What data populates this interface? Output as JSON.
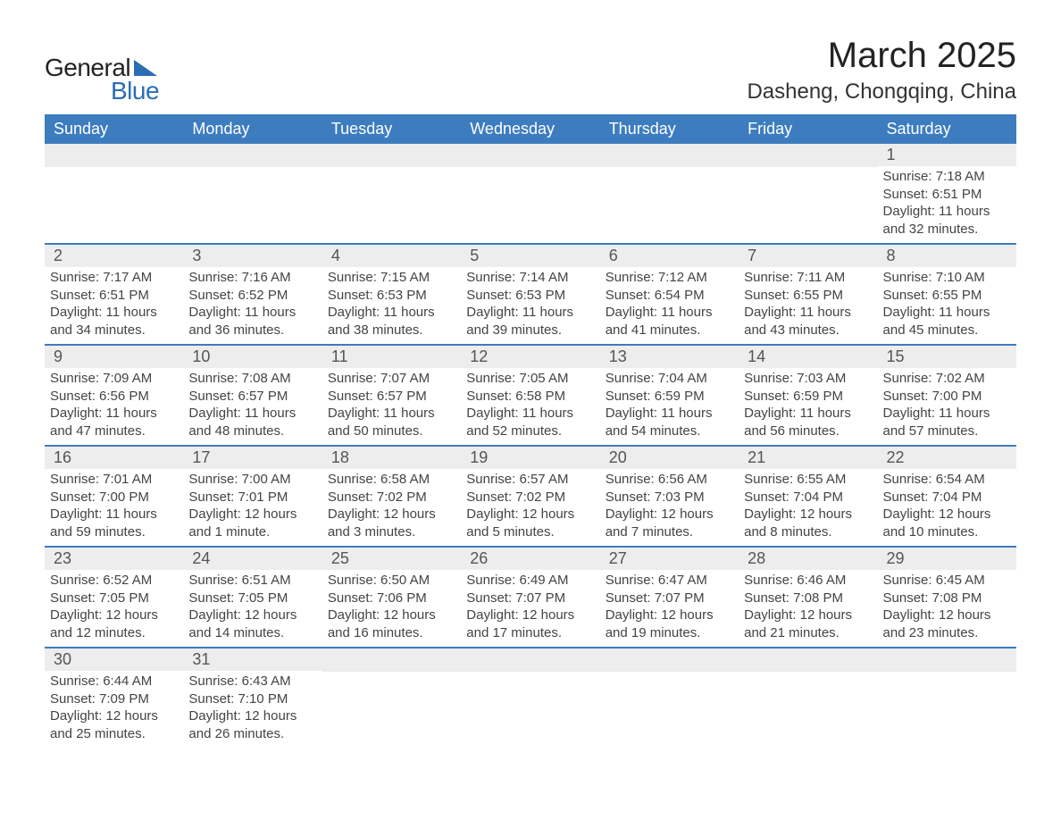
{
  "logo": {
    "text1": "General",
    "text2": "Blue"
  },
  "title": "March 2025",
  "location": "Dasheng, Chongqing, China",
  "weekdays": [
    "Sunday",
    "Monday",
    "Tuesday",
    "Wednesday",
    "Thursday",
    "Friday",
    "Saturday"
  ],
  "colors": {
    "header_bg": "#3d7cbf",
    "header_text": "#ffffff",
    "daynum_bg": "#ededed",
    "daynum_text": "#555555",
    "detail_text": "#444444",
    "row_border": "#3d7cbf",
    "logo_blue": "#2a6db5",
    "logo_text": "#222222",
    "background": "#ffffff"
  },
  "typography": {
    "title_fontsize": 40,
    "location_fontsize": 24,
    "weekday_fontsize": 18,
    "daynum_fontsize": 18,
    "detail_fontsize": 15,
    "logo_fontsize": 28
  },
  "labels": {
    "sunrise_prefix": "Sunrise: ",
    "sunset_prefix": "Sunset: ",
    "daylight_prefix": "Daylight: "
  },
  "weeks": [
    [
      {
        "day": "",
        "sunrise": "",
        "sunset": "",
        "daylight": ""
      },
      {
        "day": "",
        "sunrise": "",
        "sunset": "",
        "daylight": ""
      },
      {
        "day": "",
        "sunrise": "",
        "sunset": "",
        "daylight": ""
      },
      {
        "day": "",
        "sunrise": "",
        "sunset": "",
        "daylight": ""
      },
      {
        "day": "",
        "sunrise": "",
        "sunset": "",
        "daylight": ""
      },
      {
        "day": "",
        "sunrise": "",
        "sunset": "",
        "daylight": ""
      },
      {
        "day": "1",
        "sunrise": "7:18 AM",
        "sunset": "6:51 PM",
        "daylight": "11 hours and 32 minutes."
      }
    ],
    [
      {
        "day": "2",
        "sunrise": "7:17 AM",
        "sunset": "6:51 PM",
        "daylight": "11 hours and 34 minutes."
      },
      {
        "day": "3",
        "sunrise": "7:16 AM",
        "sunset": "6:52 PM",
        "daylight": "11 hours and 36 minutes."
      },
      {
        "day": "4",
        "sunrise": "7:15 AM",
        "sunset": "6:53 PM",
        "daylight": "11 hours and 38 minutes."
      },
      {
        "day": "5",
        "sunrise": "7:14 AM",
        "sunset": "6:53 PM",
        "daylight": "11 hours and 39 minutes."
      },
      {
        "day": "6",
        "sunrise": "7:12 AM",
        "sunset": "6:54 PM",
        "daylight": "11 hours and 41 minutes."
      },
      {
        "day": "7",
        "sunrise": "7:11 AM",
        "sunset": "6:55 PM",
        "daylight": "11 hours and 43 minutes."
      },
      {
        "day": "8",
        "sunrise": "7:10 AM",
        "sunset": "6:55 PM",
        "daylight": "11 hours and 45 minutes."
      }
    ],
    [
      {
        "day": "9",
        "sunrise": "7:09 AM",
        "sunset": "6:56 PM",
        "daylight": "11 hours and 47 minutes."
      },
      {
        "day": "10",
        "sunrise": "7:08 AM",
        "sunset": "6:57 PM",
        "daylight": "11 hours and 48 minutes."
      },
      {
        "day": "11",
        "sunrise": "7:07 AM",
        "sunset": "6:57 PM",
        "daylight": "11 hours and 50 minutes."
      },
      {
        "day": "12",
        "sunrise": "7:05 AM",
        "sunset": "6:58 PM",
        "daylight": "11 hours and 52 minutes."
      },
      {
        "day": "13",
        "sunrise": "7:04 AM",
        "sunset": "6:59 PM",
        "daylight": "11 hours and 54 minutes."
      },
      {
        "day": "14",
        "sunrise": "7:03 AM",
        "sunset": "6:59 PM",
        "daylight": "11 hours and 56 minutes."
      },
      {
        "day": "15",
        "sunrise": "7:02 AM",
        "sunset": "7:00 PM",
        "daylight": "11 hours and 57 minutes."
      }
    ],
    [
      {
        "day": "16",
        "sunrise": "7:01 AM",
        "sunset": "7:00 PM",
        "daylight": "11 hours and 59 minutes."
      },
      {
        "day": "17",
        "sunrise": "7:00 AM",
        "sunset": "7:01 PM",
        "daylight": "12 hours and 1 minute."
      },
      {
        "day": "18",
        "sunrise": "6:58 AM",
        "sunset": "7:02 PM",
        "daylight": "12 hours and 3 minutes."
      },
      {
        "day": "19",
        "sunrise": "6:57 AM",
        "sunset": "7:02 PM",
        "daylight": "12 hours and 5 minutes."
      },
      {
        "day": "20",
        "sunrise": "6:56 AM",
        "sunset": "7:03 PM",
        "daylight": "12 hours and 7 minutes."
      },
      {
        "day": "21",
        "sunrise": "6:55 AM",
        "sunset": "7:04 PM",
        "daylight": "12 hours and 8 minutes."
      },
      {
        "day": "22",
        "sunrise": "6:54 AM",
        "sunset": "7:04 PM",
        "daylight": "12 hours and 10 minutes."
      }
    ],
    [
      {
        "day": "23",
        "sunrise": "6:52 AM",
        "sunset": "7:05 PM",
        "daylight": "12 hours and 12 minutes."
      },
      {
        "day": "24",
        "sunrise": "6:51 AM",
        "sunset": "7:05 PM",
        "daylight": "12 hours and 14 minutes."
      },
      {
        "day": "25",
        "sunrise": "6:50 AM",
        "sunset": "7:06 PM",
        "daylight": "12 hours and 16 minutes."
      },
      {
        "day": "26",
        "sunrise": "6:49 AM",
        "sunset": "7:07 PM",
        "daylight": "12 hours and 17 minutes."
      },
      {
        "day": "27",
        "sunrise": "6:47 AM",
        "sunset": "7:07 PM",
        "daylight": "12 hours and 19 minutes."
      },
      {
        "day": "28",
        "sunrise": "6:46 AM",
        "sunset": "7:08 PM",
        "daylight": "12 hours and 21 minutes."
      },
      {
        "day": "29",
        "sunrise": "6:45 AM",
        "sunset": "7:08 PM",
        "daylight": "12 hours and 23 minutes."
      }
    ],
    [
      {
        "day": "30",
        "sunrise": "6:44 AM",
        "sunset": "7:09 PM",
        "daylight": "12 hours and 25 minutes."
      },
      {
        "day": "31",
        "sunrise": "6:43 AM",
        "sunset": "7:10 PM",
        "daylight": "12 hours and 26 minutes."
      },
      {
        "day": "",
        "sunrise": "",
        "sunset": "",
        "daylight": ""
      },
      {
        "day": "",
        "sunrise": "",
        "sunset": "",
        "daylight": ""
      },
      {
        "day": "",
        "sunrise": "",
        "sunset": "",
        "daylight": ""
      },
      {
        "day": "",
        "sunrise": "",
        "sunset": "",
        "daylight": ""
      },
      {
        "day": "",
        "sunrise": "",
        "sunset": "",
        "daylight": ""
      }
    ]
  ]
}
